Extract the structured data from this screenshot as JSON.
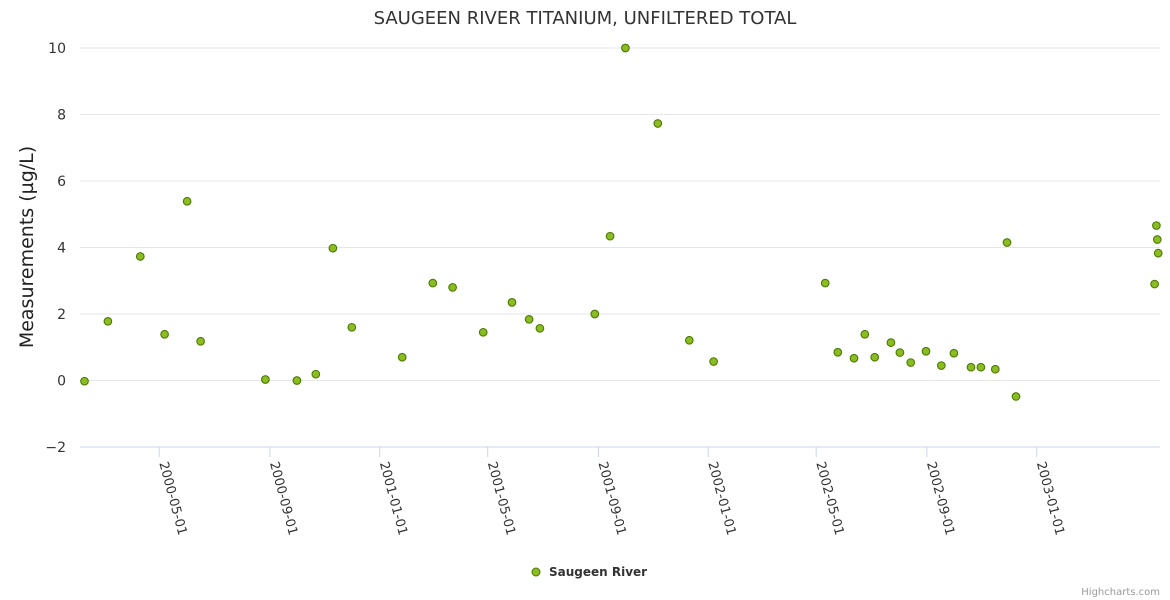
{
  "chart_data": {
    "type": "scatter",
    "title": "SAUGEEN RIVER TITANIUM, UNFILTERED TOTAL",
    "ylabel": "Measurements (µg/L)",
    "xlabel": "",
    "ylim": [
      -2,
      10
    ],
    "yticks": [
      -2,
      0,
      2,
      4,
      6,
      8,
      10
    ],
    "x_tick_labels": [
      "2000-05-01",
      "2000-09-01",
      "2001-01-01",
      "2001-05-01",
      "2001-09-01",
      "2002-01-01",
      "2002-05-01",
      "2002-09-01",
      "2003-01-01"
    ],
    "xlim": [
      "2000-02-03",
      "2003-05-18"
    ],
    "grid": true,
    "legend_position": "bottom-center",
    "colors": {
      "marker_fill": "#8bbc21",
      "marker_stroke": "#4a7a00"
    },
    "series": [
      {
        "name": "Saugeen River",
        "points": [
          {
            "x": "2000-02-08",
            "y": -0.02
          },
          {
            "x": "2000-03-05",
            "y": 1.78
          },
          {
            "x": "2000-04-10",
            "y": 3.73
          },
          {
            "x": "2000-05-07",
            "y": 1.39
          },
          {
            "x": "2000-06-01",
            "y": 5.39
          },
          {
            "x": "2000-06-16",
            "y": 1.18
          },
          {
            "x": "2000-08-27",
            "y": 0.03
          },
          {
            "x": "2000-10-01",
            "y": 0.0
          },
          {
            "x": "2000-10-22",
            "y": 0.19
          },
          {
            "x": "2000-11-10",
            "y": 3.98
          },
          {
            "x": "2000-12-01",
            "y": 1.6
          },
          {
            "x": "2001-01-26",
            "y": 0.7
          },
          {
            "x": "2001-03-01",
            "y": 2.93
          },
          {
            "x": "2001-03-23",
            "y": 2.8
          },
          {
            "x": "2001-04-26",
            "y": 1.45
          },
          {
            "x": "2001-05-28",
            "y": 2.35
          },
          {
            "x": "2001-06-16",
            "y": 1.84
          },
          {
            "x": "2001-06-28",
            "y": 1.57
          },
          {
            "x": "2001-08-28",
            "y": 2.0
          },
          {
            "x": "2001-09-14",
            "y": 4.34
          },
          {
            "x": "2001-10-01",
            "y": 10.0
          },
          {
            "x": "2001-11-06",
            "y": 7.73
          },
          {
            "x": "2001-12-11",
            "y": 1.21
          },
          {
            "x": "2002-01-07",
            "y": 0.57
          },
          {
            "x": "2002-05-11",
            "y": 2.93
          },
          {
            "x": "2002-05-25",
            "y": 0.85
          },
          {
            "x": "2002-06-12",
            "y": 0.67
          },
          {
            "x": "2002-06-24",
            "y": 1.39
          },
          {
            "x": "2002-07-05",
            "y": 0.7
          },
          {
            "x": "2002-07-23",
            "y": 1.14
          },
          {
            "x": "2002-08-02",
            "y": 0.84
          },
          {
            "x": "2002-08-14",
            "y": 0.54
          },
          {
            "x": "2002-08-31",
            "y": 0.88
          },
          {
            "x": "2002-09-17",
            "y": 0.45
          },
          {
            "x": "2002-10-01",
            "y": 0.82
          },
          {
            "x": "2002-10-20",
            "y": 0.4
          },
          {
            "x": "2002-10-31",
            "y": 0.4
          },
          {
            "x": "2002-11-16",
            "y": 0.34
          },
          {
            "x": "2002-11-29",
            "y": 4.15
          },
          {
            "x": "2002-12-09",
            "y": -0.48
          },
          {
            "x": "2003-05-12",
            "y": 2.9
          },
          {
            "x": "2003-05-14",
            "y": 4.66
          },
          {
            "x": "2003-05-15",
            "y": 4.24
          },
          {
            "x": "2003-05-16",
            "y": 3.83
          }
        ]
      }
    ]
  },
  "legend": {
    "label": "Saugeen River"
  },
  "credits": "Highcharts.com"
}
